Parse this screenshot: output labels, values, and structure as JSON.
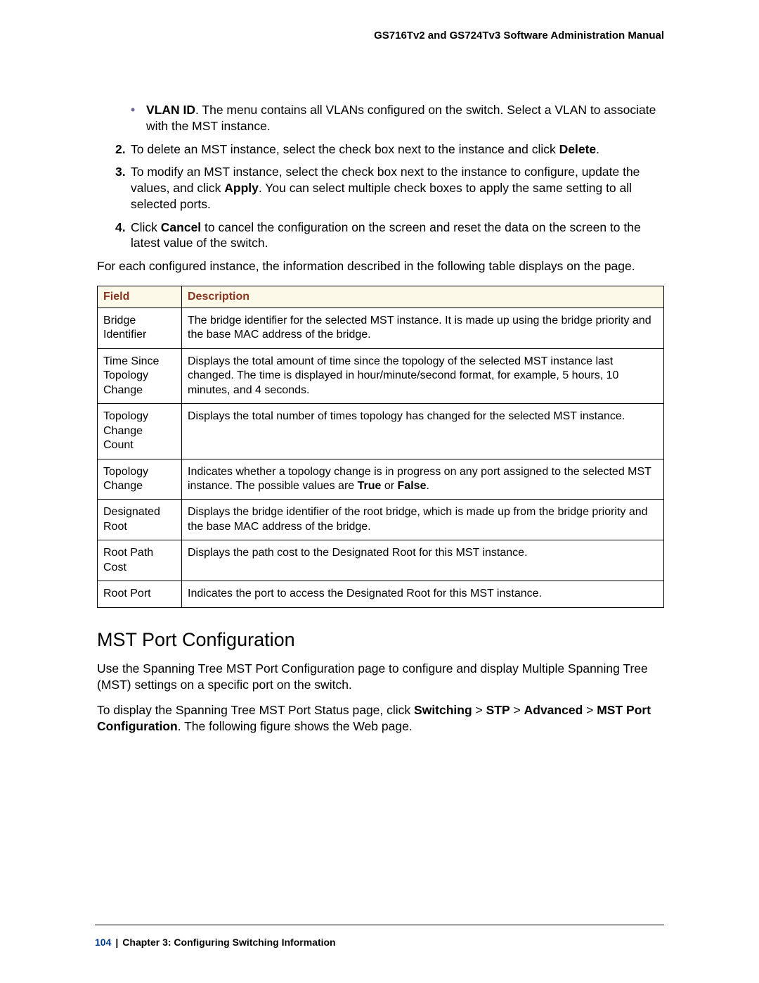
{
  "header": {
    "manualTitle": "GS716Tv2 and GS724Tv3 Software Administration Manual"
  },
  "bullet": {
    "termBold": "VLAN ID",
    "text": ". The menu contains all VLANs configured on the switch. Select a VLAN to associate with the MST instance."
  },
  "steps": {
    "s2": {
      "num": "2.",
      "pre": "To delete an MST instance, select the check box next to the instance and click ",
      "bold1": "Delete",
      "post": "."
    },
    "s3": {
      "num": "3.",
      "pre": "To modify an MST instance, select the check box next to the instance to configure, update the values, and click ",
      "bold1": "Apply",
      "post": ". You can select multiple check boxes to apply the same setting to all selected ports."
    },
    "s4": {
      "num": "4.",
      "pre": "Click ",
      "bold1": "Cancel",
      "post": " to cancel the configuration on the screen and reset the data on the screen to the latest value of the switch."
    }
  },
  "introPara": "For each configured instance, the information described in the following table displays on the page.",
  "table": {
    "h1": "Field",
    "h2": "Description",
    "rows": [
      {
        "f": "Bridge Identifier",
        "d": "The bridge identifier for the selected MST instance. It is made up using the bridge priority and the base MAC address of the bridge."
      },
      {
        "f": "Time Since Topology Change",
        "d": "Displays the total amount of time since the topology of the selected MST instance last changed. The time is displayed in hour/minute/second format, for example, 5 hours, 10 minutes, and 4 seconds."
      },
      {
        "f": "Topology Change Count",
        "d": "Displays the total number of times topology has changed for the selected MST instance."
      },
      {
        "f": "Topology Change",
        "dPre": "Indicates whether a topology change is in progress on any port assigned to the selected MST instance. The possible values are ",
        "b1": "True",
        "mid": " or ",
        "b2": "False",
        "dPost": "."
      },
      {
        "f": "Designated Root",
        "d": "Displays the bridge identifier of the root bridge, which is made up from the bridge priority and the base MAC address of the bridge."
      },
      {
        "f": "Root Path Cost",
        "d": "Displays the path cost to the Designated Root for this MST instance."
      },
      {
        "f": "Root Port",
        "d": "Indicates the port to access the Designated Root for this MST instance."
      }
    ]
  },
  "section": {
    "heading": "MST Port Configuration",
    "p1": "Use the Spanning Tree MST Port Configuration page to configure and display Multiple Spanning Tree (MST) settings on a specific port on the switch.",
    "p2pre": "To display the Spanning Tree MST Port Status page, click ",
    "nav1": "Switching",
    "nav2": "STP",
    "nav3": "Advanced",
    "nav4": "MST Port Configuration",
    "p2post": ". The following figure shows the Web page."
  },
  "footer": {
    "page": "104",
    "chapter": "Chapter 3:  Configuring Switching Information"
  }
}
